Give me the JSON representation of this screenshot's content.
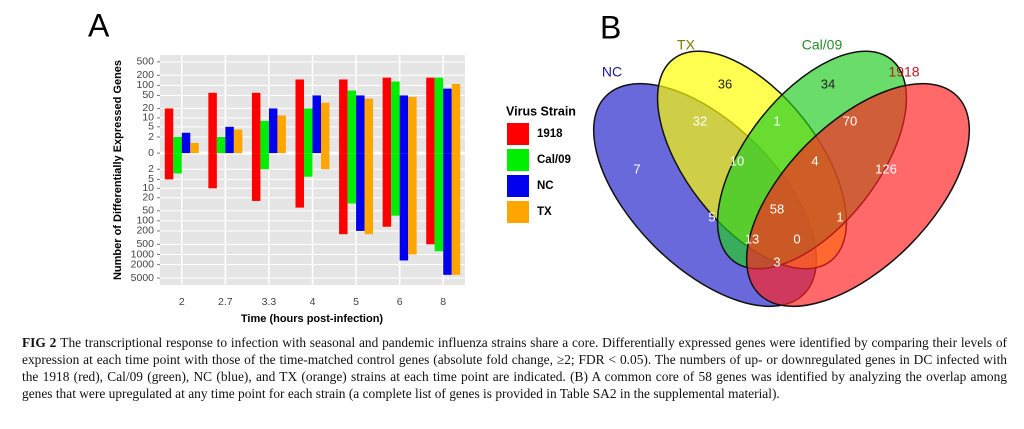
{
  "chart_data": {
    "type": "bar",
    "panel_label": "A",
    "y_label": "Number of Differentially Expressed Genes",
    "x_label": "Time (hours post-infection)",
    "legend_title": "Virus Strain",
    "scale": "symlog",
    "categories": [
      "2",
      "2.7",
      "3.3",
      "4",
      "5",
      "6",
      "8"
    ],
    "series": [
      {
        "name": "1918",
        "color": "#ff0000",
        "values": [
          20,
          60,
          60,
          150,
          150,
          170,
          170
        ],
        "down_values": [
          -5,
          -10,
          -25,
          -40,
          -250,
          -150,
          -500
        ]
      },
      {
        "name": "Cal/09",
        "color": "#00ee00",
        "values": [
          2,
          2,
          8,
          20,
          70,
          130,
          170
        ],
        "down_values": [
          -3,
          0,
          -2,
          -4,
          -30,
          -70,
          -800
        ]
      },
      {
        "name": "NC",
        "color": "#0000ee",
        "values": [
          3,
          5,
          20,
          50,
          50,
          50,
          80
        ],
        "down_values": [
          0,
          0,
          0,
          0,
          -200,
          -1500,
          -4000
        ]
      },
      {
        "name": "TX",
        "color": "#ffa500",
        "values": [
          1,
          4,
          12,
          30,
          40,
          45,
          110
        ],
        "down_values": [
          0,
          0,
          0,
          -2,
          -250,
          -1000,
          -4000
        ]
      }
    ],
    "ylim": [
      -8000,
      800
    ],
    "yticks": [
      500,
      200,
      100,
      50,
      20,
      10,
      5,
      2,
      0,
      {
        "value": -2,
        "label": "2"
      },
      {
        "value": -5,
        "label": "5"
      },
      {
        "value": -10,
        "label": "10"
      },
      {
        "value": -20,
        "label": "20"
      },
      {
        "value": -50,
        "label": "50"
      },
      {
        "value": -100,
        "label": "100"
      },
      {
        "value": -200,
        "label": "200"
      },
      {
        "value": -500,
        "label": "500"
      },
      {
        "value": -1000,
        "label": "1000"
      },
      {
        "value": -2000,
        "label": "2000"
      },
      {
        "value": -5000,
        "label": "5000"
      }
    ],
    "grid": true
  },
  "venn": {
    "panel_label": "B",
    "sets": [
      {
        "name": "NC",
        "color": "#2222cc"
      },
      {
        "name": "TX",
        "color": "#ffff00"
      },
      {
        "name": "Cal/09",
        "color": "#22cc22"
      },
      {
        "name": "1918",
        "color": "#ff2222"
      }
    ],
    "set_label_colors": [
      "#1a1a8c",
      "#7a7a00",
      "#2a8a2a",
      "#c01818"
    ],
    "counts": [
      36,
      34,
      32,
      1,
      70,
      7,
      10,
      4,
      126,
      58,
      5,
      1,
      13,
      0,
      3
    ]
  },
  "caption": {
    "label": "FIG 2",
    "text": "The transcriptional response to infection with seasonal and pandemic influenza strains share a core. Differentially expressed genes were identified by comparing their levels of expression at each time point with those of the time-matched control genes (absolute fold change, ≥2; FDR < 0.05). The numbers of up- or downregulated genes in DC infected with the 1918 (red), Cal/09 (green), NC (blue), and TX (orange) strains at each time point are indicated. (B) A common core of 58 genes was identified by analyzing the overlap among genes that were upregulated at any time point for each strain (a complete list of genes is provided in Table SA2 in the supplemental material)."
  }
}
